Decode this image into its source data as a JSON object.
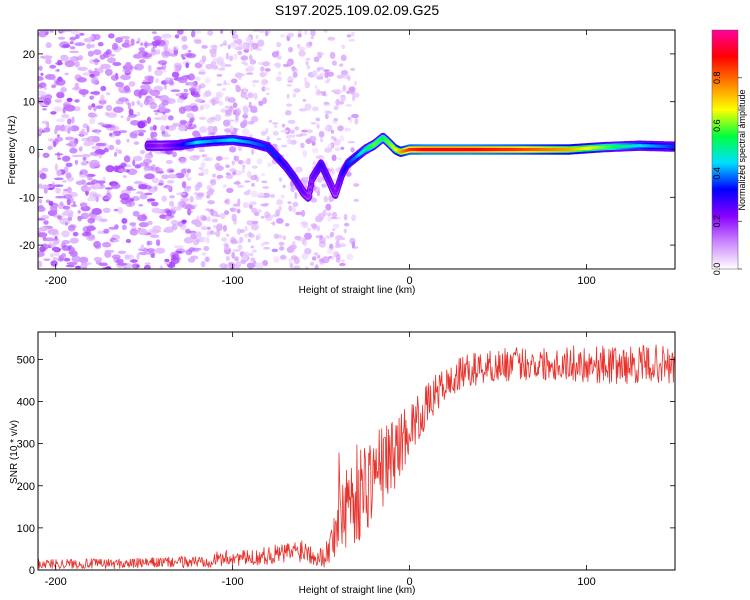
{
  "title": "S197.2025.109.02.09.G25",
  "chart_data": [
    {
      "type": "heatmap",
      "xlabel": "Height of straight line (km)",
      "ylabel": "Frequency (Hz)",
      "xlim": [
        -210,
        150
      ],
      "ylim": [
        -25,
        25
      ],
      "x_ticks": [
        -200,
        -100,
        0,
        100
      ],
      "y_ticks": [
        -20,
        -10,
        0,
        10,
        20
      ],
      "colorbar": {
        "label": "Normalized spectral amplitude",
        "range": [
          0.0,
          1.0
        ],
        "ticks": [
          "0.0",
          "0.2",
          "0.4",
          "0.6",
          "0.8"
        ],
        "colors": [
          "#ffffff",
          "#cc88ff",
          "#8800ff",
          "#0000ff",
          "#00e0ff",
          "#00ff40",
          "#ffff00",
          "#ff8000",
          "#ff0000",
          "#ff00a0"
        ]
      },
      "ridge": {
        "x": [
          -148,
          -140,
          -130,
          -120,
          -110,
          -100,
          -90,
          -80,
          -75,
          -70,
          -65,
          -60,
          -57,
          -55,
          -50,
          -45,
          -42,
          -38,
          -35,
          -30,
          -25,
          -20,
          -15,
          -12,
          -8,
          -5,
          0,
          10,
          30,
          60,
          90,
          110,
          130,
          150
        ],
        "y": [
          0.8,
          0.8,
          0.9,
          1.5,
          1.8,
          2.0,
          1.5,
          0.5,
          -1.5,
          -3.5,
          -6.0,
          -9.0,
          -10.0,
          -6.0,
          -3.0,
          -7.0,
          -9.5,
          -5.0,
          -3.0,
          -1.5,
          0.0,
          1.0,
          2.5,
          1.5,
          0.0,
          -0.5,
          0.0,
          0.0,
          0.0,
          0.0,
          0.0,
          0.5,
          0.8,
          0.6
        ],
        "amplitude": [
          0.25,
          0.2,
          0.3,
          0.45,
          0.4,
          0.45,
          0.4,
          0.35,
          0.35,
          0.3,
          0.3,
          0.25,
          0.2,
          0.25,
          0.3,
          0.25,
          0.2,
          0.3,
          0.35,
          0.4,
          0.5,
          0.6,
          0.55,
          0.6,
          0.65,
          0.75,
          0.85,
          0.9,
          0.9,
          0.85,
          0.75,
          0.6,
          0.45,
          0.35
        ]
      }
    },
    {
      "type": "line",
      "xlabel": "Height of straight line (km)",
      "ylabel": "SNR (10 * v/v)",
      "xlim": [
        -210,
        150
      ],
      "ylim": [
        0,
        565
      ],
      "x_ticks": [
        -200,
        -100,
        0,
        100
      ],
      "y_ticks": [
        0,
        100,
        200,
        300,
        400,
        500
      ],
      "series": [
        {
          "color": "#e8312b",
          "x": [
            -210,
            -200,
            -180,
            -160,
            -140,
            -120,
            -110,
            -100,
            -90,
            -80,
            -70,
            -60,
            -50,
            -45,
            -40,
            -35,
            -30,
            -25,
            -20,
            -15,
            -10,
            -5,
            0,
            5,
            10,
            15,
            20,
            25,
            30,
            40,
            50,
            60,
            80,
            100,
            120,
            140,
            150
          ],
          "y": [
            15,
            15,
            15,
            15,
            18,
            20,
            25,
            30,
            28,
            35,
            40,
            50,
            30,
            50,
            150,
            170,
            180,
            200,
            230,
            250,
            270,
            300,
            340,
            360,
            390,
            420,
            440,
            450,
            470,
            480,
            485,
            490,
            490,
            490,
            485,
            490,
            480
          ],
          "spread": [
            12,
            12,
            12,
            12,
            12,
            15,
            18,
            20,
            18,
            22,
            25,
            30,
            25,
            40,
            130,
            140,
            120,
            120,
            100,
            100,
            90,
            80,
            60,
            55,
            50,
            45,
            40,
            40,
            40,
            40,
            40,
            40,
            40,
            45,
            45,
            45,
            50
          ]
        }
      ]
    }
  ]
}
